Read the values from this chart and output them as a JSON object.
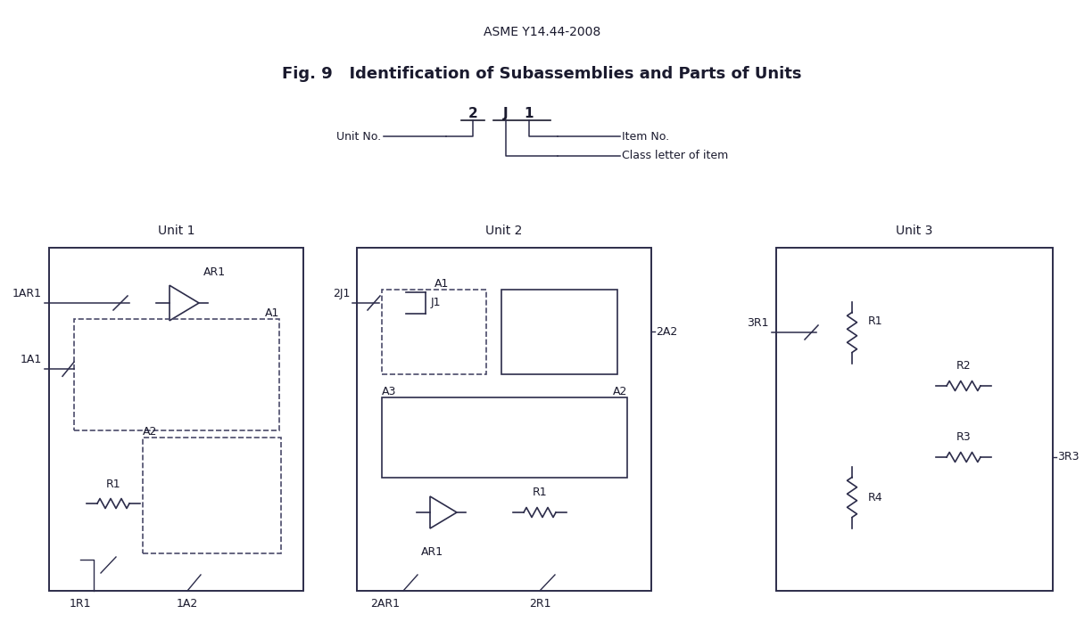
{
  "title_top": "ASME Y14.44-2008",
  "title_main": "Fig. 9   Identification of Subassemblies and Parts of Units",
  "bg_color": "#ffffff",
  "text_color": "#1a1a2e",
  "line_color": "#2c2c4a",
  "dashed_color": "#4a4a6a",
  "font_family": "DejaVu Sans",
  "unit1_label": "Unit 1",
  "unit2_label": "Unit 2",
  "unit3_label": "Unit 3"
}
